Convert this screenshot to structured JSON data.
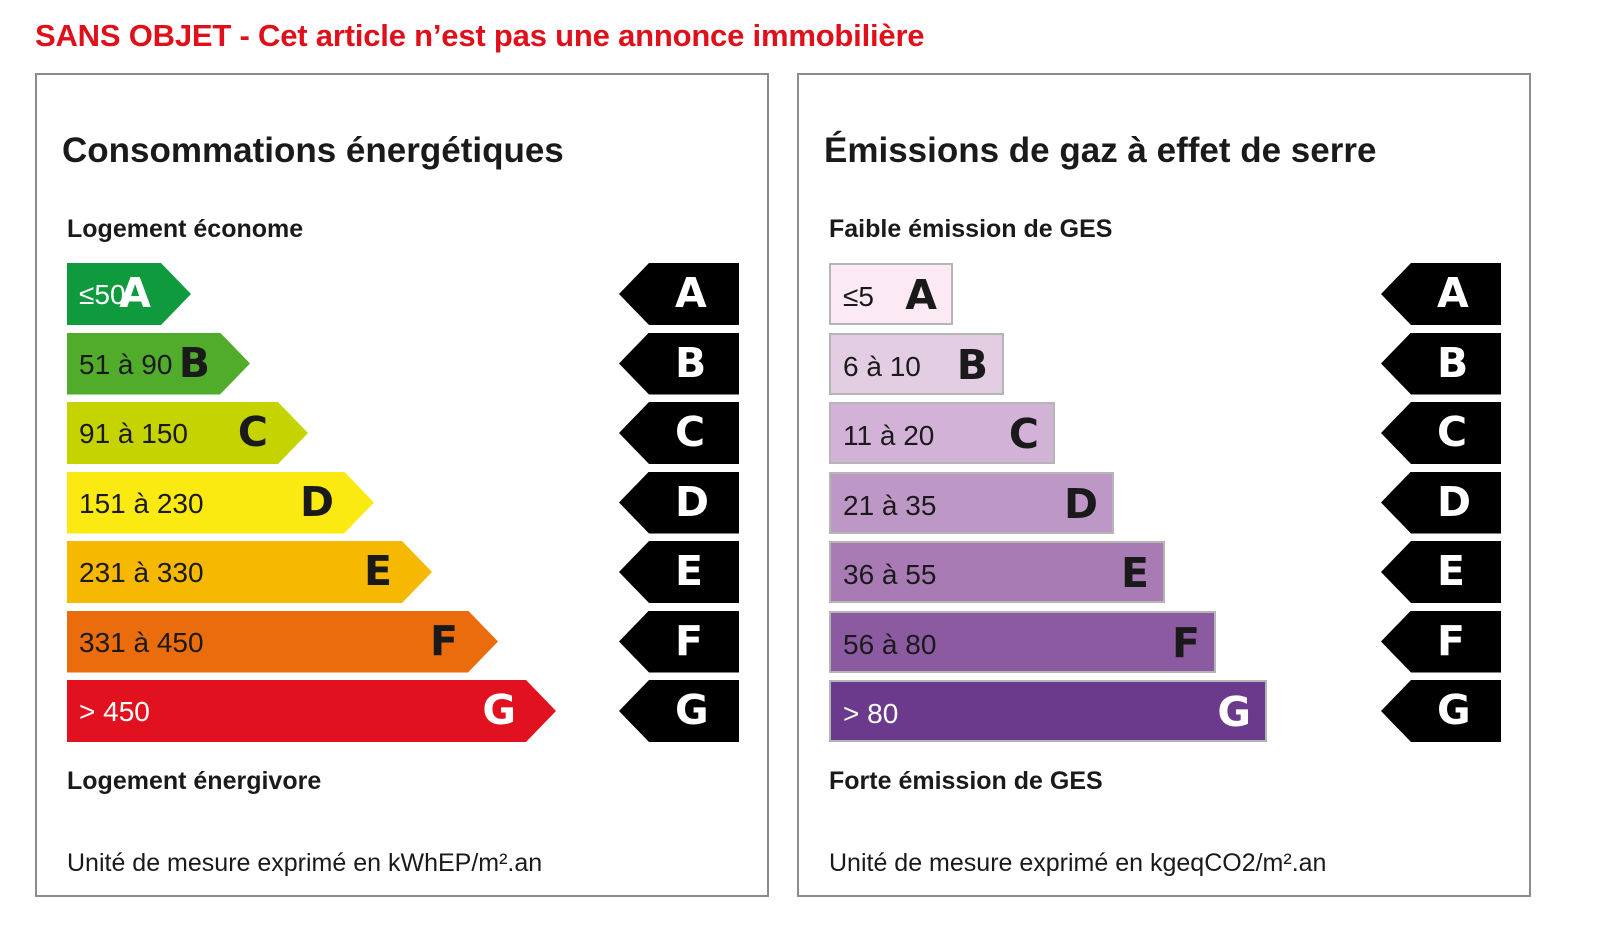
{
  "notice": "SANS OBJET - Cet article n’est pas une annonce immobilière",
  "energy": {
    "title": "Consommations énergétiques",
    "top_label": "Logement économe",
    "bottom_label": "Logement énergivore",
    "unit": "Unité de mesure exprimé en kWhEP/m².an",
    "classes": [
      {
        "letter": "A",
        "range": "≤50",
        "color": "#0f9a3e",
        "text_color": "#ffffff",
        "width_fraction": 0.17
      },
      {
        "letter": "B",
        "range": "51 à 90",
        "color": "#52ac2c",
        "text_color": "#1a1a1a",
        "width_fraction": 0.25
      },
      {
        "letter": "C",
        "range": "91 à 150",
        "color": "#c5d300",
        "text_color": "#1a1a1a",
        "width_fraction": 0.33
      },
      {
        "letter": "D",
        "range": "151 à 230",
        "color": "#fbea12",
        "text_color": "#1a1a1a",
        "width_fraction": 0.42
      },
      {
        "letter": "E",
        "range": "231 à 330",
        "color": "#f6b800",
        "text_color": "#1a1a1a",
        "width_fraction": 0.5
      },
      {
        "letter": "F",
        "range": "331 à 450",
        "color": "#ea6c0d",
        "text_color": "#1a1a1a",
        "width_fraction": 0.59
      },
      {
        "letter": "G",
        "range": "> 450",
        "color": "#e2111f",
        "text_color": "#ffffff",
        "width_fraction": 0.67
      }
    ],
    "markers": [
      "A",
      "B",
      "C",
      "D",
      "E",
      "F",
      "G"
    ]
  },
  "ges": {
    "title": "Émissions de gaz à effet de serre",
    "top_label": "Faible émission de GES",
    "bottom_label": "Forte émission de GES",
    "unit": "Unité de mesure exprimé en kgeqCO2/m².an",
    "classes": [
      {
        "letter": "A",
        "range": "≤5",
        "color": "#fbeaf3",
        "text_color": "#1a1a1a",
        "width_fraction": 0.17
      },
      {
        "letter": "B",
        "range": "6 à 10",
        "color": "#e3cde3",
        "text_color": "#1a1a1a",
        "width_fraction": 0.24
      },
      {
        "letter": "C",
        "range": "11 à 20",
        "color": "#d2b2d6",
        "text_color": "#1a1a1a",
        "width_fraction": 0.31
      },
      {
        "letter": "D",
        "range": "21 à 35",
        "color": "#bd98c6",
        "text_color": "#1a1a1a",
        "width_fraction": 0.39
      },
      {
        "letter": "E",
        "range": "36 à 55",
        "color": "#a97bb5",
        "text_color": "#1a1a1a",
        "width_fraction": 0.46
      },
      {
        "letter": "F",
        "range": "56 à 80",
        "color": "#8c5aa1",
        "text_color": "#1a1a1a",
        "width_fraction": 0.53
      },
      {
        "letter": "G",
        "range": "> 80",
        "color": "#6b3a8d",
        "text_color": "#ffffff",
        "width_fraction": 0.6
      }
    ],
    "markers": [
      "A",
      "B",
      "C",
      "D",
      "E",
      "F",
      "G"
    ]
  }
}
